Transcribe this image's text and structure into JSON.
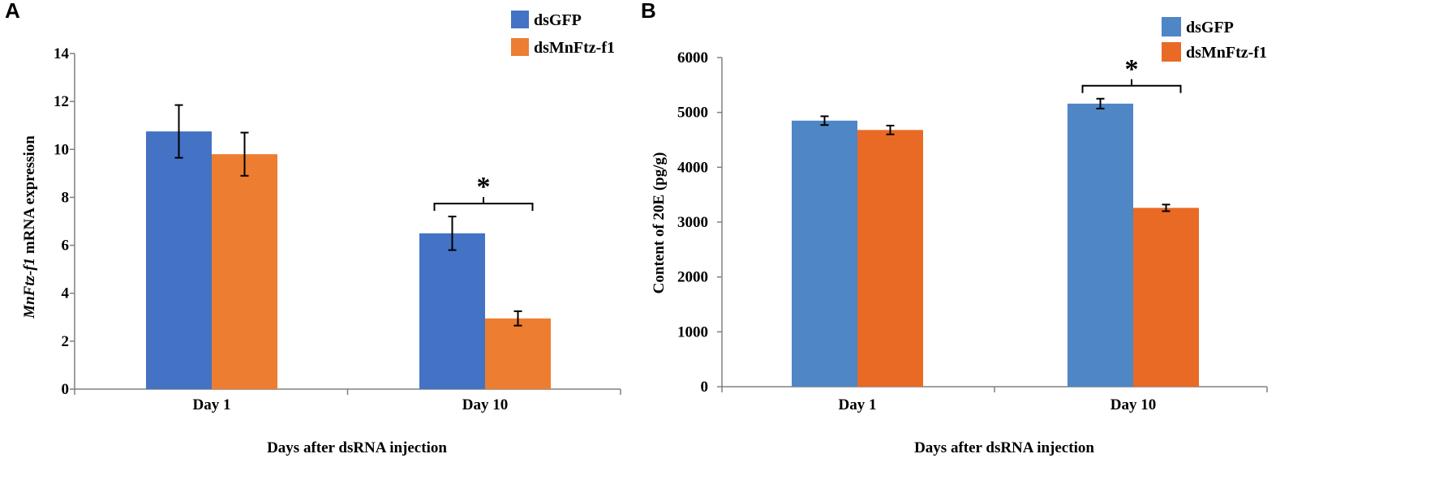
{
  "panels": {
    "a": {
      "letter": "A",
      "ylabel_italic": "MnFtz-f1",
      "ylabel_rest": " mRNA expression"
    },
    "b": {
      "letter": "B"
    }
  },
  "chart_data": [
    {
      "type": "bar",
      "panel": "A",
      "categories": [
        "Day 1",
        "Day 10"
      ],
      "series": [
        {
          "name": "dsGFP",
          "color": "#4472c4",
          "values": [
            10.75,
            6.5
          ],
          "errors": [
            1.1,
            0.7
          ]
        },
        {
          "name": "dsMnFtz-f1",
          "color": "#ed7d31",
          "values": [
            9.8,
            2.95
          ],
          "errors": [
            0.9,
            0.3
          ]
        }
      ],
      "xlabel": "Days after dsRNA injection",
      "ylabel": "MnFtz-f1 mRNA expression",
      "ylim": [
        0,
        14
      ],
      "yticks": [
        "0",
        "2",
        "4",
        "6",
        "8",
        "10",
        "12",
        "14"
      ],
      "legend_position": "top-right",
      "grid": false,
      "significance": [
        {
          "category": "Day 10",
          "label": "*"
        }
      ]
    },
    {
      "type": "bar",
      "panel": "B",
      "categories": [
        "Day 1",
        "Day 10"
      ],
      "series": [
        {
          "name": "dsGFP",
          "color": "#4e86c6",
          "values": [
            4850,
            5160
          ],
          "errors": [
            80,
            90
          ]
        },
        {
          "name": "dsMnFtz-f1",
          "color": "#e86a25",
          "values": [
            4680,
            3260
          ],
          "errors": [
            80,
            60
          ]
        }
      ],
      "xlabel": "Days after dsRNA injection",
      "ylabel": "Content of 20E (pg/g)",
      "ylim": [
        0,
        6000
      ],
      "yticks": [
        "0",
        "1000",
        "2000",
        "3000",
        "4000",
        "5000",
        "6000"
      ],
      "legend_position": "top-right",
      "grid": false,
      "significance": [
        {
          "category": "Day 10",
          "label": "*"
        }
      ]
    }
  ]
}
